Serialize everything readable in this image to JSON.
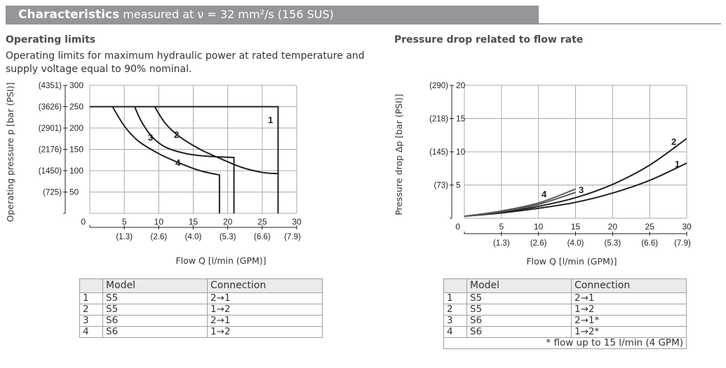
{
  "header": {
    "title_bold": "Characteristics",
    "title_rest": " measured at ν = 32 mm²/s (156 SUS)"
  },
  "left_section": {
    "title": "Operating limits",
    "description": "Operating limits for maximum hydraulic power at rated temperature and supply voltage equal to 90% nominal."
  },
  "right_section": {
    "title": "Pressure drop related to flow rate"
  },
  "left_table": {
    "headers": [
      "",
      "Model",
      "Connection"
    ],
    "rows": [
      [
        "1",
        "S5",
        "2→1"
      ],
      [
        "2",
        "S5",
        "1→2"
      ],
      [
        "3",
        "S6",
        "2→1"
      ],
      [
        "4",
        "S6",
        "1→2"
      ]
    ]
  },
  "right_table": {
    "headers": [
      "",
      "Model",
      "Connection"
    ],
    "rows": [
      [
        "1",
        "S5",
        "2→1"
      ],
      [
        "2",
        "S5",
        "1→2"
      ],
      [
        "3",
        "S6",
        "2→1*"
      ],
      [
        "4",
        "S6",
        "1→2*"
      ]
    ],
    "note": "* flow up to 15 l/min (4 GPM)"
  },
  "chart_data": [
    {
      "type": "line",
      "title": "Operating limits",
      "xlabel": "Flow Q [l/min (GPM)]",
      "ylabel": "Operating pressure p [bar (PSI)]",
      "xlim": [
        0,
        30
      ],
      "ylim": [
        0,
        300
      ],
      "grid": true,
      "x_ticks": [
        "0",
        "5",
        "10",
        "15",
        "20",
        "25",
        "30"
      ],
      "x_ticks_secondary": [
        "(1.3)",
        "(2.6)",
        "(4.0)",
        "(5.3)",
        "(6.6)",
        "(7.9)"
      ],
      "y_ticks": [
        "50",
        "100",
        "150",
        "200",
        "250",
        "300"
      ],
      "y_ticks_secondary": [
        "(725)",
        "(1450)",
        "(2176)",
        "(2901)",
        "(3626)",
        "(4351)"
      ],
      "series": [
        {
          "name": "1",
          "points": [
            [
              0,
              250
            ],
            [
              27.3,
              250
            ],
            [
              27.3,
              87
            ],
            [
              27.3,
              0
            ]
          ]
        },
        {
          "name": "2",
          "points": [
            [
              9.4,
              250
            ],
            [
              11,
              210
            ],
            [
              13,
              180
            ],
            [
              16,
              150
            ],
            [
              19,
              128
            ],
            [
              22,
              108
            ],
            [
              25,
              96
            ],
            [
              27.3,
              93
            ]
          ]
        },
        {
          "name": "3",
          "points": [
            [
              6.5,
              250
            ],
            [
              7.5,
              215
            ],
            [
              9,
              180
            ],
            [
              11,
              155
            ],
            [
              14,
              140
            ],
            [
              17,
              134
            ],
            [
              20.9,
              131
            ],
            [
              20.9,
              0
            ]
          ]
        },
        {
          "name": "4",
          "points": [
            [
              3.3,
              250
            ],
            [
              5,
              205
            ],
            [
              7,
              170
            ],
            [
              10,
              140
            ],
            [
              13,
              118
            ],
            [
              16,
              100
            ],
            [
              18.8,
              90
            ],
            [
              18.8,
              0
            ]
          ]
        }
      ]
    },
    {
      "type": "line",
      "title": "Pressure drop related to flow rate",
      "xlabel": "Flow Q [l/min (GPM)]",
      "ylabel": "Pressure drop Δp [bar (PSI)]",
      "xlim": [
        0,
        30
      ],
      "ylim": [
        0,
        20
      ],
      "grid": true,
      "x_ticks": [
        "0",
        "5",
        "10",
        "15",
        "20",
        "25",
        "30"
      ],
      "x_ticks_secondary": [
        "(1.3)",
        "(2.6)",
        "(4.0)",
        "(5.3)",
        "(6.6)",
        "(7.9)"
      ],
      "y_ticks": [
        "5",
        "10",
        "15",
        "20"
      ],
      "y_ticks_secondary": [
        "(73)",
        "(145)",
        "(218)",
        "(290)"
      ],
      "series": [
        {
          "name": "1",
          "points": [
            [
              0,
              0.3
            ],
            [
              5,
              0.8
            ],
            [
              10,
              1.5
            ],
            [
              15,
              2.4
            ],
            [
              20,
              3.8
            ],
            [
              25,
              5.7
            ],
            [
              30,
              8.3
            ]
          ]
        },
        {
          "name": "2",
          "points": [
            [
              0,
              0.3
            ],
            [
              5,
              0.9
            ],
            [
              10,
              1.8
            ],
            [
              15,
              3.1
            ],
            [
              20,
              5.1
            ],
            [
              25,
              8.0
            ],
            [
              30,
              12.0
            ]
          ]
        },
        {
          "name": "3",
          "points": [
            [
              0,
              0.3
            ],
            [
              5,
              1.0
            ],
            [
              10,
              2.1
            ],
            [
              15,
              3.9
            ]
          ]
        },
        {
          "name": "4",
          "points": [
            [
              0,
              0.3
            ],
            [
              5,
              1.1
            ],
            [
              10,
              2.3
            ],
            [
              15,
              4.4
            ]
          ]
        }
      ]
    }
  ]
}
